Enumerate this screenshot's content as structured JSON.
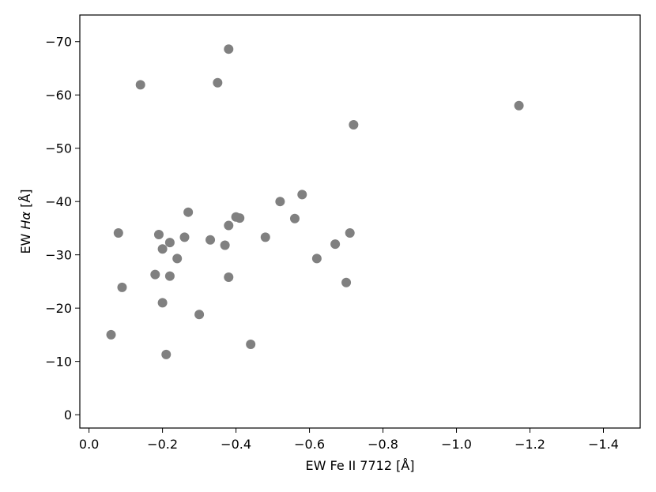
{
  "chart_data": {
    "type": "scatter",
    "title": "",
    "xlabel": "EW Fe II 7712 [Å]",
    "ylabel_prefix": "EW ",
    "ylabel_symbol": "Hα",
    "ylabel_suffix": " [Å]",
    "xlim": [
      0.025,
      -1.5
    ],
    "ylim": [
      2.5,
      -75
    ],
    "x_ticks": [
      0.0,
      -0.2,
      -0.4,
      -0.6,
      -0.8,
      -1.0,
      -1.2,
      -1.4
    ],
    "x_tick_labels": [
      "0.0",
      "−0.2",
      "−0.4",
      "−0.6",
      "−0.8",
      "−1.0",
      "−1.2",
      "−1.4"
    ],
    "y_ticks": [
      0,
      -10,
      -20,
      -30,
      -40,
      -50,
      -60,
      -70
    ],
    "y_tick_labels": [
      "0",
      "−10",
      "−20",
      "−30",
      "−40",
      "−50",
      "−60",
      "−70"
    ],
    "grid": false,
    "legend": "none",
    "marker_color": "#808080",
    "series": [
      {
        "points": [
          {
            "x": -0.06,
            "y": -15.0
          },
          {
            "x": -0.08,
            "y": -34.1
          },
          {
            "x": -0.09,
            "y": -23.9
          },
          {
            "x": -0.14,
            "y": -61.9
          },
          {
            "x": -0.18,
            "y": -26.3
          },
          {
            "x": -0.19,
            "y": -33.8
          },
          {
            "x": -0.2,
            "y": -31.1
          },
          {
            "x": -0.2,
            "y": -21.0
          },
          {
            "x": -0.21,
            "y": -11.3
          },
          {
            "x": -0.22,
            "y": -32.3
          },
          {
            "x": -0.22,
            "y": -26.0
          },
          {
            "x": -0.24,
            "y": -29.3
          },
          {
            "x": -0.26,
            "y": -33.3
          },
          {
            "x": -0.27,
            "y": -38.0
          },
          {
            "x": -0.3,
            "y": -18.8
          },
          {
            "x": -0.33,
            "y": -32.8
          },
          {
            "x": -0.35,
            "y": -62.3
          },
          {
            "x": -0.37,
            "y": -31.8
          },
          {
            "x": -0.38,
            "y": -68.6
          },
          {
            "x": -0.38,
            "y": -35.5
          },
          {
            "x": -0.38,
            "y": -25.8
          },
          {
            "x": -0.4,
            "y": -37.1
          },
          {
            "x": -0.41,
            "y": -36.9
          },
          {
            "x": -0.44,
            "y": -13.2
          },
          {
            "x": -0.48,
            "y": -33.3
          },
          {
            "x": -0.52,
            "y": -40.0
          },
          {
            "x": -0.56,
            "y": -36.8
          },
          {
            "x": -0.58,
            "y": -41.3
          },
          {
            "x": -0.62,
            "y": -29.3
          },
          {
            "x": -0.67,
            "y": -32.0
          },
          {
            "x": -0.7,
            "y": -24.8
          },
          {
            "x": -0.71,
            "y": -34.1
          },
          {
            "x": -0.72,
            "y": -54.4
          },
          {
            "x": -1.17,
            "y": -58.0
          }
        ]
      }
    ]
  }
}
